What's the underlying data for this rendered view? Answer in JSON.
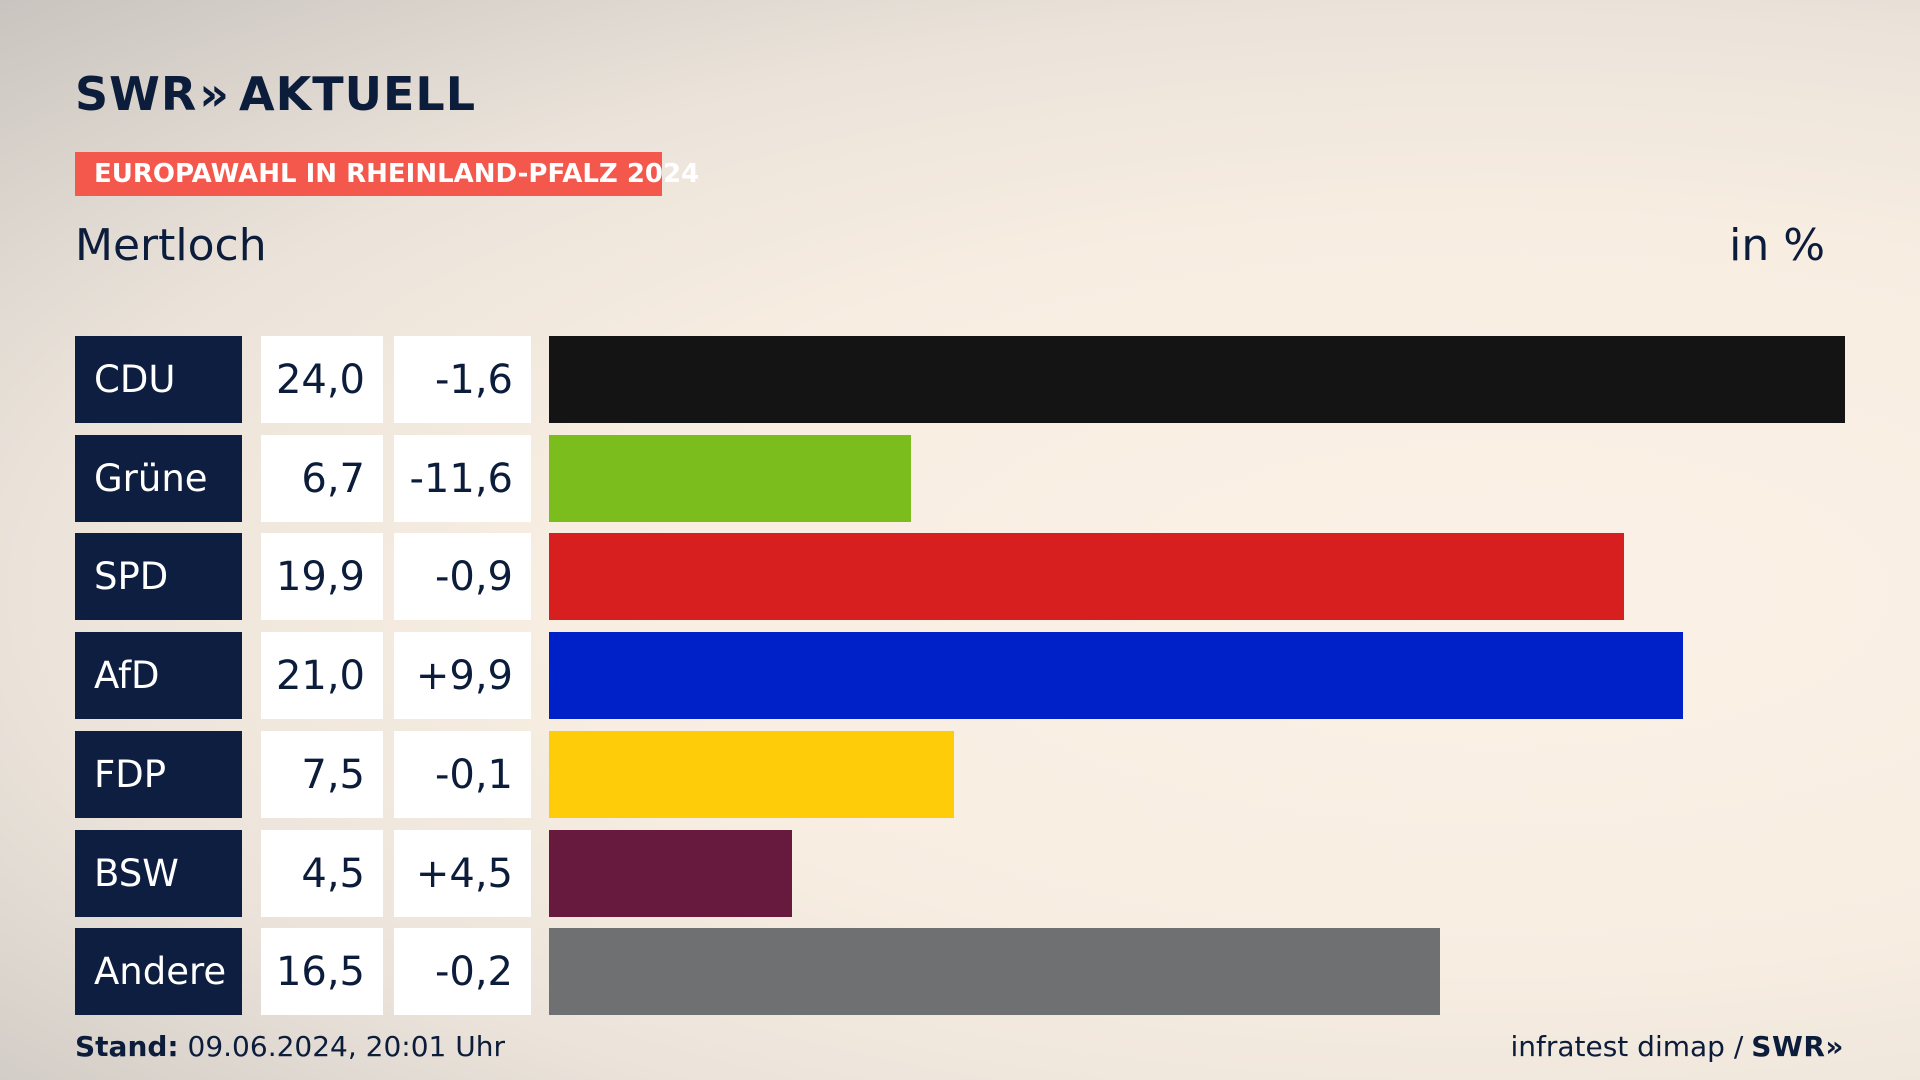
{
  "logo": {
    "brand": "SWR",
    "chevrons": "»",
    "suffix": "AKTUELL"
  },
  "banner": "EUROPAWAHL IN RHEINLAND-PFALZ 2024",
  "place": "Mertloch",
  "unit": "in %",
  "colors": {
    "CDU": "#141414",
    "Grüne": "#7abd1d",
    "SPD": "#d81f1f",
    "AfD": "#0020c8",
    "FDP": "#ffcc0a",
    "BSW": "#671a3e",
    "Andere": "#6f7072",
    "banner": "#f4584d",
    "label_bg": "#0d1e40"
  },
  "chart_data": {
    "type": "bar",
    "orientation": "horizontal",
    "title": "Mertloch",
    "unit": "in %",
    "categories": [
      "CDU",
      "Grüne",
      "SPD",
      "AfD",
      "FDP",
      "BSW",
      "Andere"
    ],
    "values": [
      24.0,
      6.7,
      19.9,
      21.0,
      7.5,
      4.5,
      16.5
    ],
    "value_labels": [
      "24,0",
      "6,7",
      "19,9",
      "21,0",
      "7,5",
      "4,5",
      "16,5"
    ],
    "changes": [
      -1.6,
      -11.6,
      -0.9,
      9.9,
      -0.1,
      4.5,
      -0.2
    ],
    "change_labels": [
      "-1,6",
      "-11,6",
      "-0,9",
      "+9,9",
      "-0,1",
      "+4,5",
      "-0,2"
    ],
    "xlim": [
      0,
      24.0
    ]
  },
  "footer": {
    "stand_label": "Stand:",
    "stand_value": "09.06.2024, 20:01 Uhr",
    "source": "infratest dimap /",
    "source_brand": "SWR",
    "source_chevrons": "»"
  }
}
